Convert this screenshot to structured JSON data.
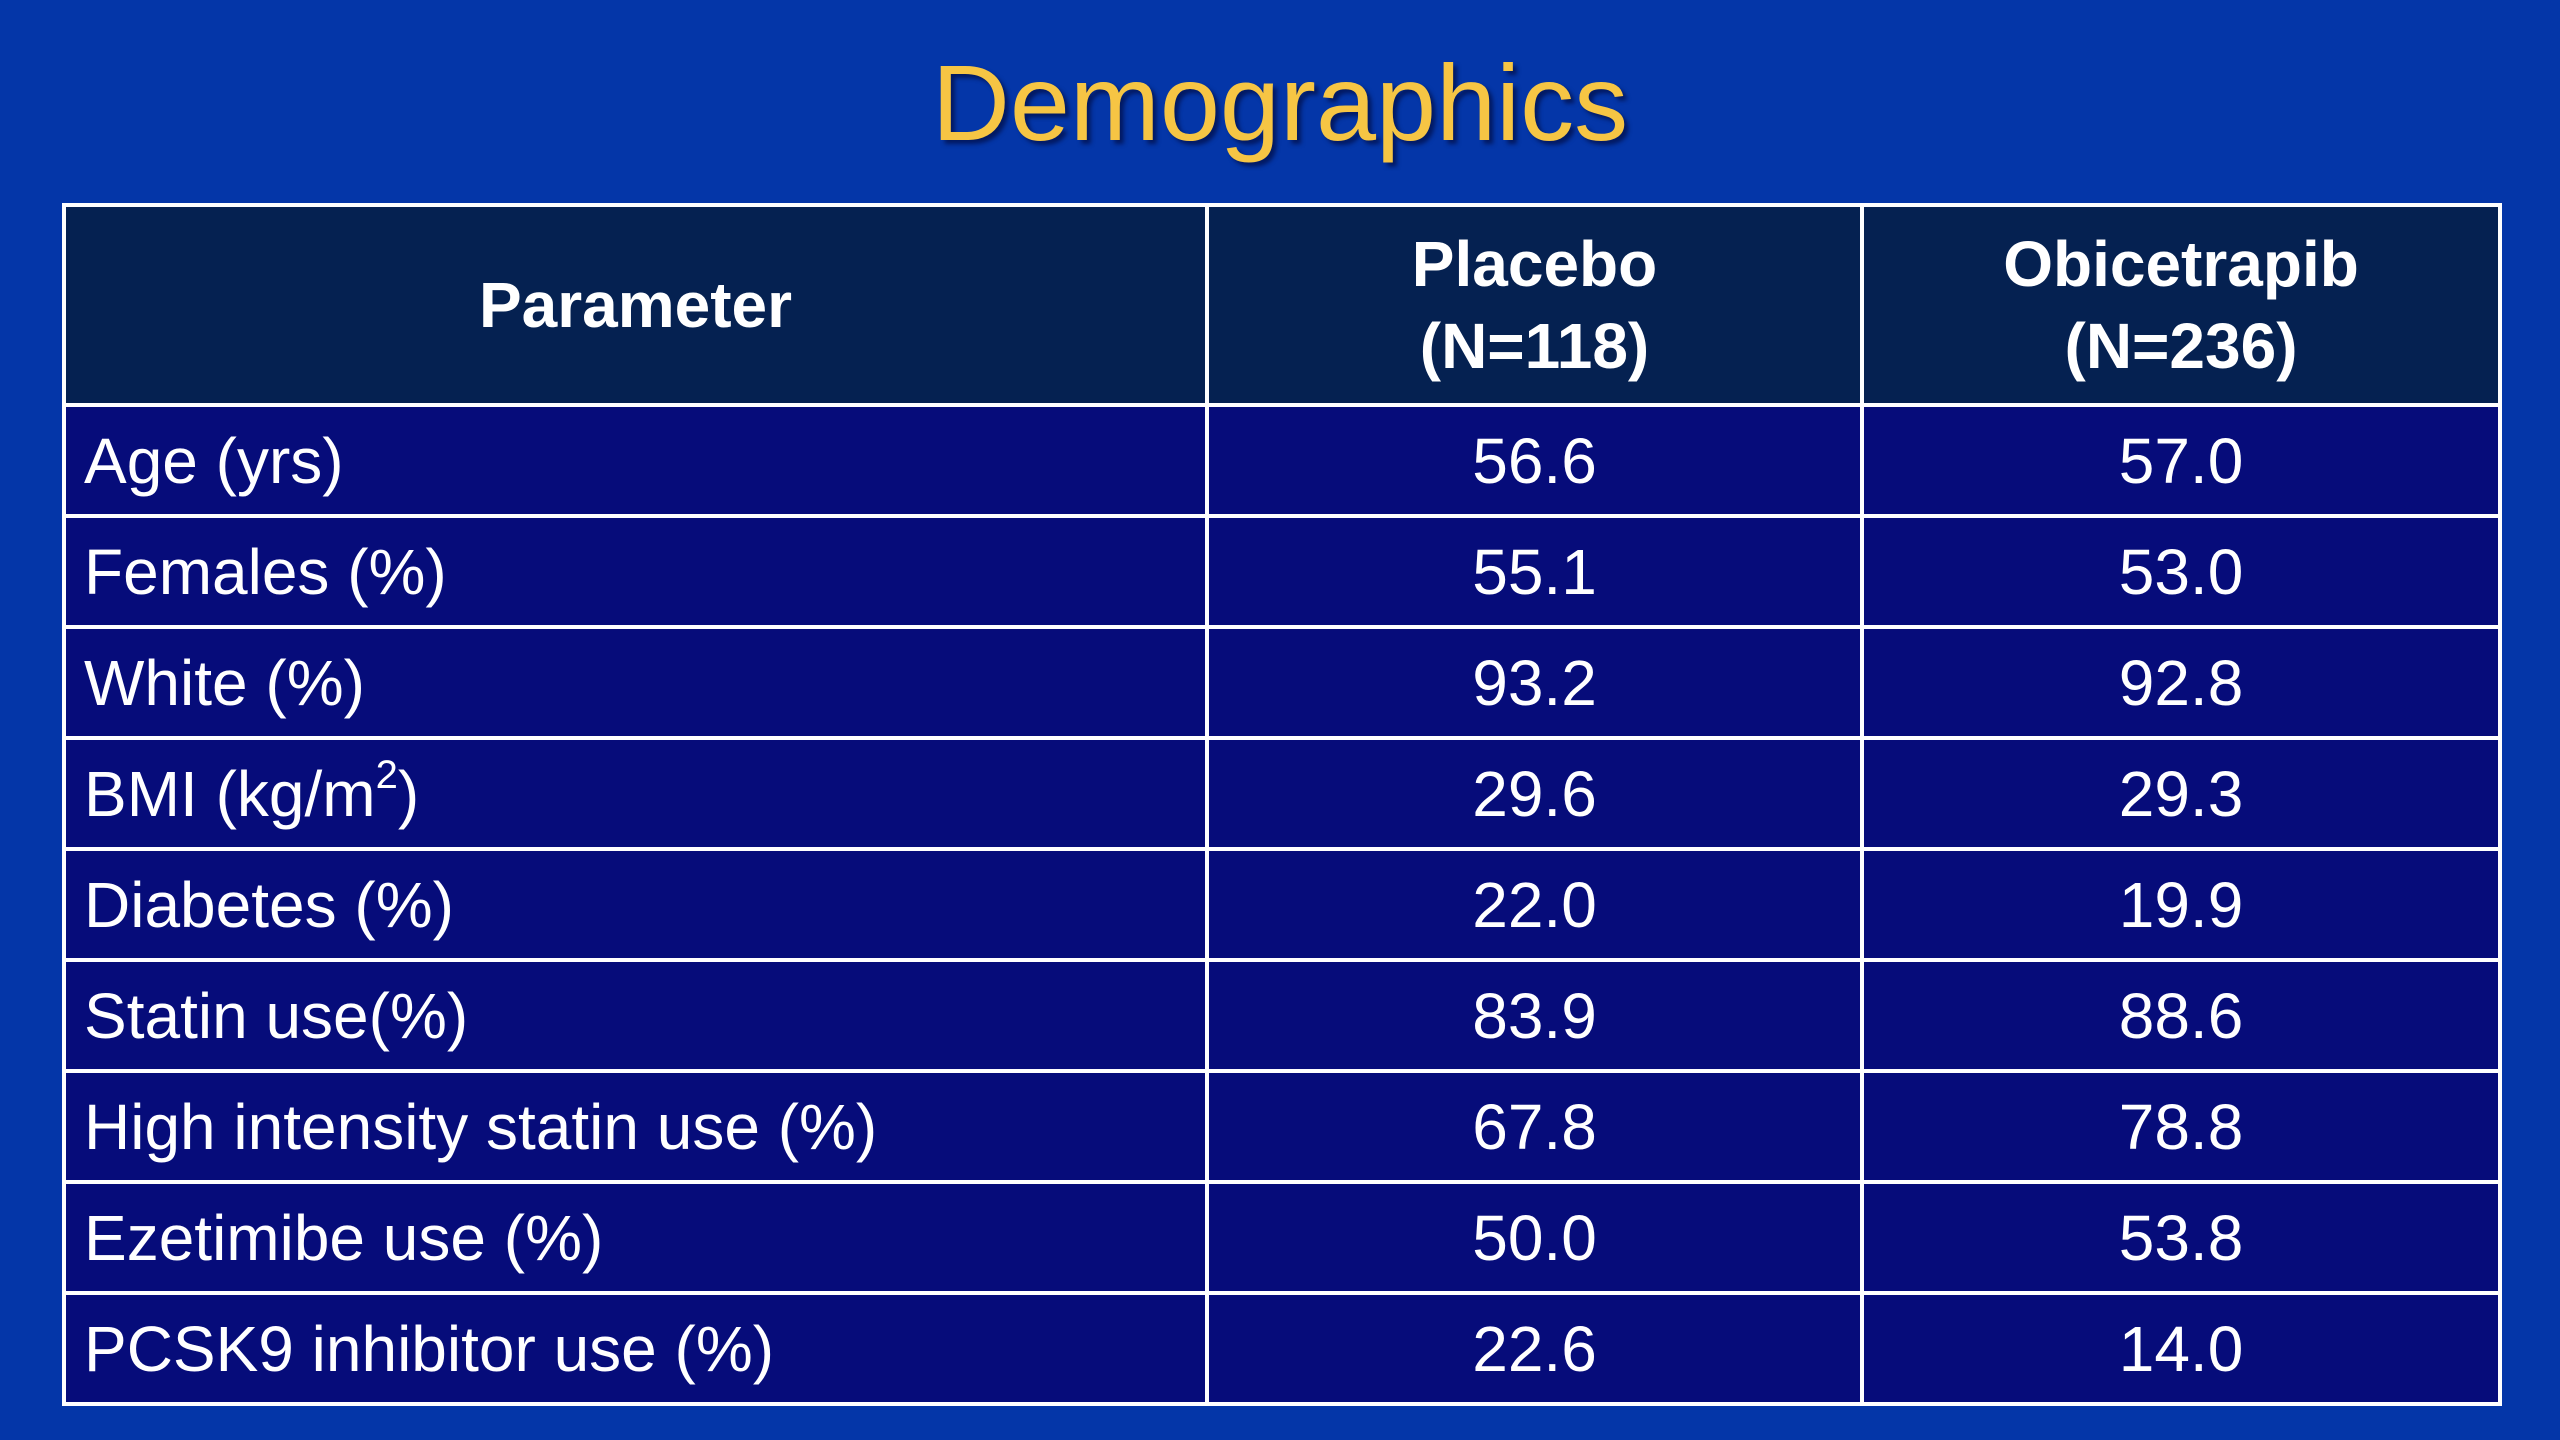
{
  "slide": {
    "title": "Demographics"
  },
  "table": {
    "headers": {
      "parameter": "Parameter",
      "placebo": {
        "line1": "Placebo",
        "line2": "(N=118)"
      },
      "obicetrapib": {
        "line1": "Obicetrapib",
        "line2": "(N=236)"
      }
    },
    "rows": [
      {
        "parameter": "Age (yrs)",
        "placebo": "56.6",
        "obicetrapib": "57.0"
      },
      {
        "parameter": "Females (%)",
        "placebo": "55.1",
        "obicetrapib": "53.0"
      },
      {
        "parameter": "White (%)",
        "placebo": "93.2",
        "obicetrapib": "92.8"
      },
      {
        "parameter_prefix": "BMI (kg/m",
        "parameter_sup": "2",
        "parameter_suffix": ")",
        "placebo": "29.6",
        "obicetrapib": "29.3"
      },
      {
        "parameter": "Diabetes (%)",
        "placebo": "22.0",
        "obicetrapib": "19.9"
      },
      {
        "parameter": "Statin use(%)",
        "placebo": "83.9",
        "obicetrapib": "88.6"
      },
      {
        "parameter": "High intensity statin use (%)",
        "placebo": "67.8",
        "obicetrapib": "78.8"
      },
      {
        "parameter": "Ezetimibe use (%)",
        "placebo": "50.0",
        "obicetrapib": "53.8"
      },
      {
        "parameter": "PCSK9 inhibitor use (%)",
        "placebo": "22.6",
        "obicetrapib": "14.0"
      }
    ]
  },
  "colors": {
    "background": "#0436a8",
    "title": "#f6c544",
    "header_fill": "#052151",
    "row_fill": "#060c7a",
    "border": "#ffffff"
  }
}
